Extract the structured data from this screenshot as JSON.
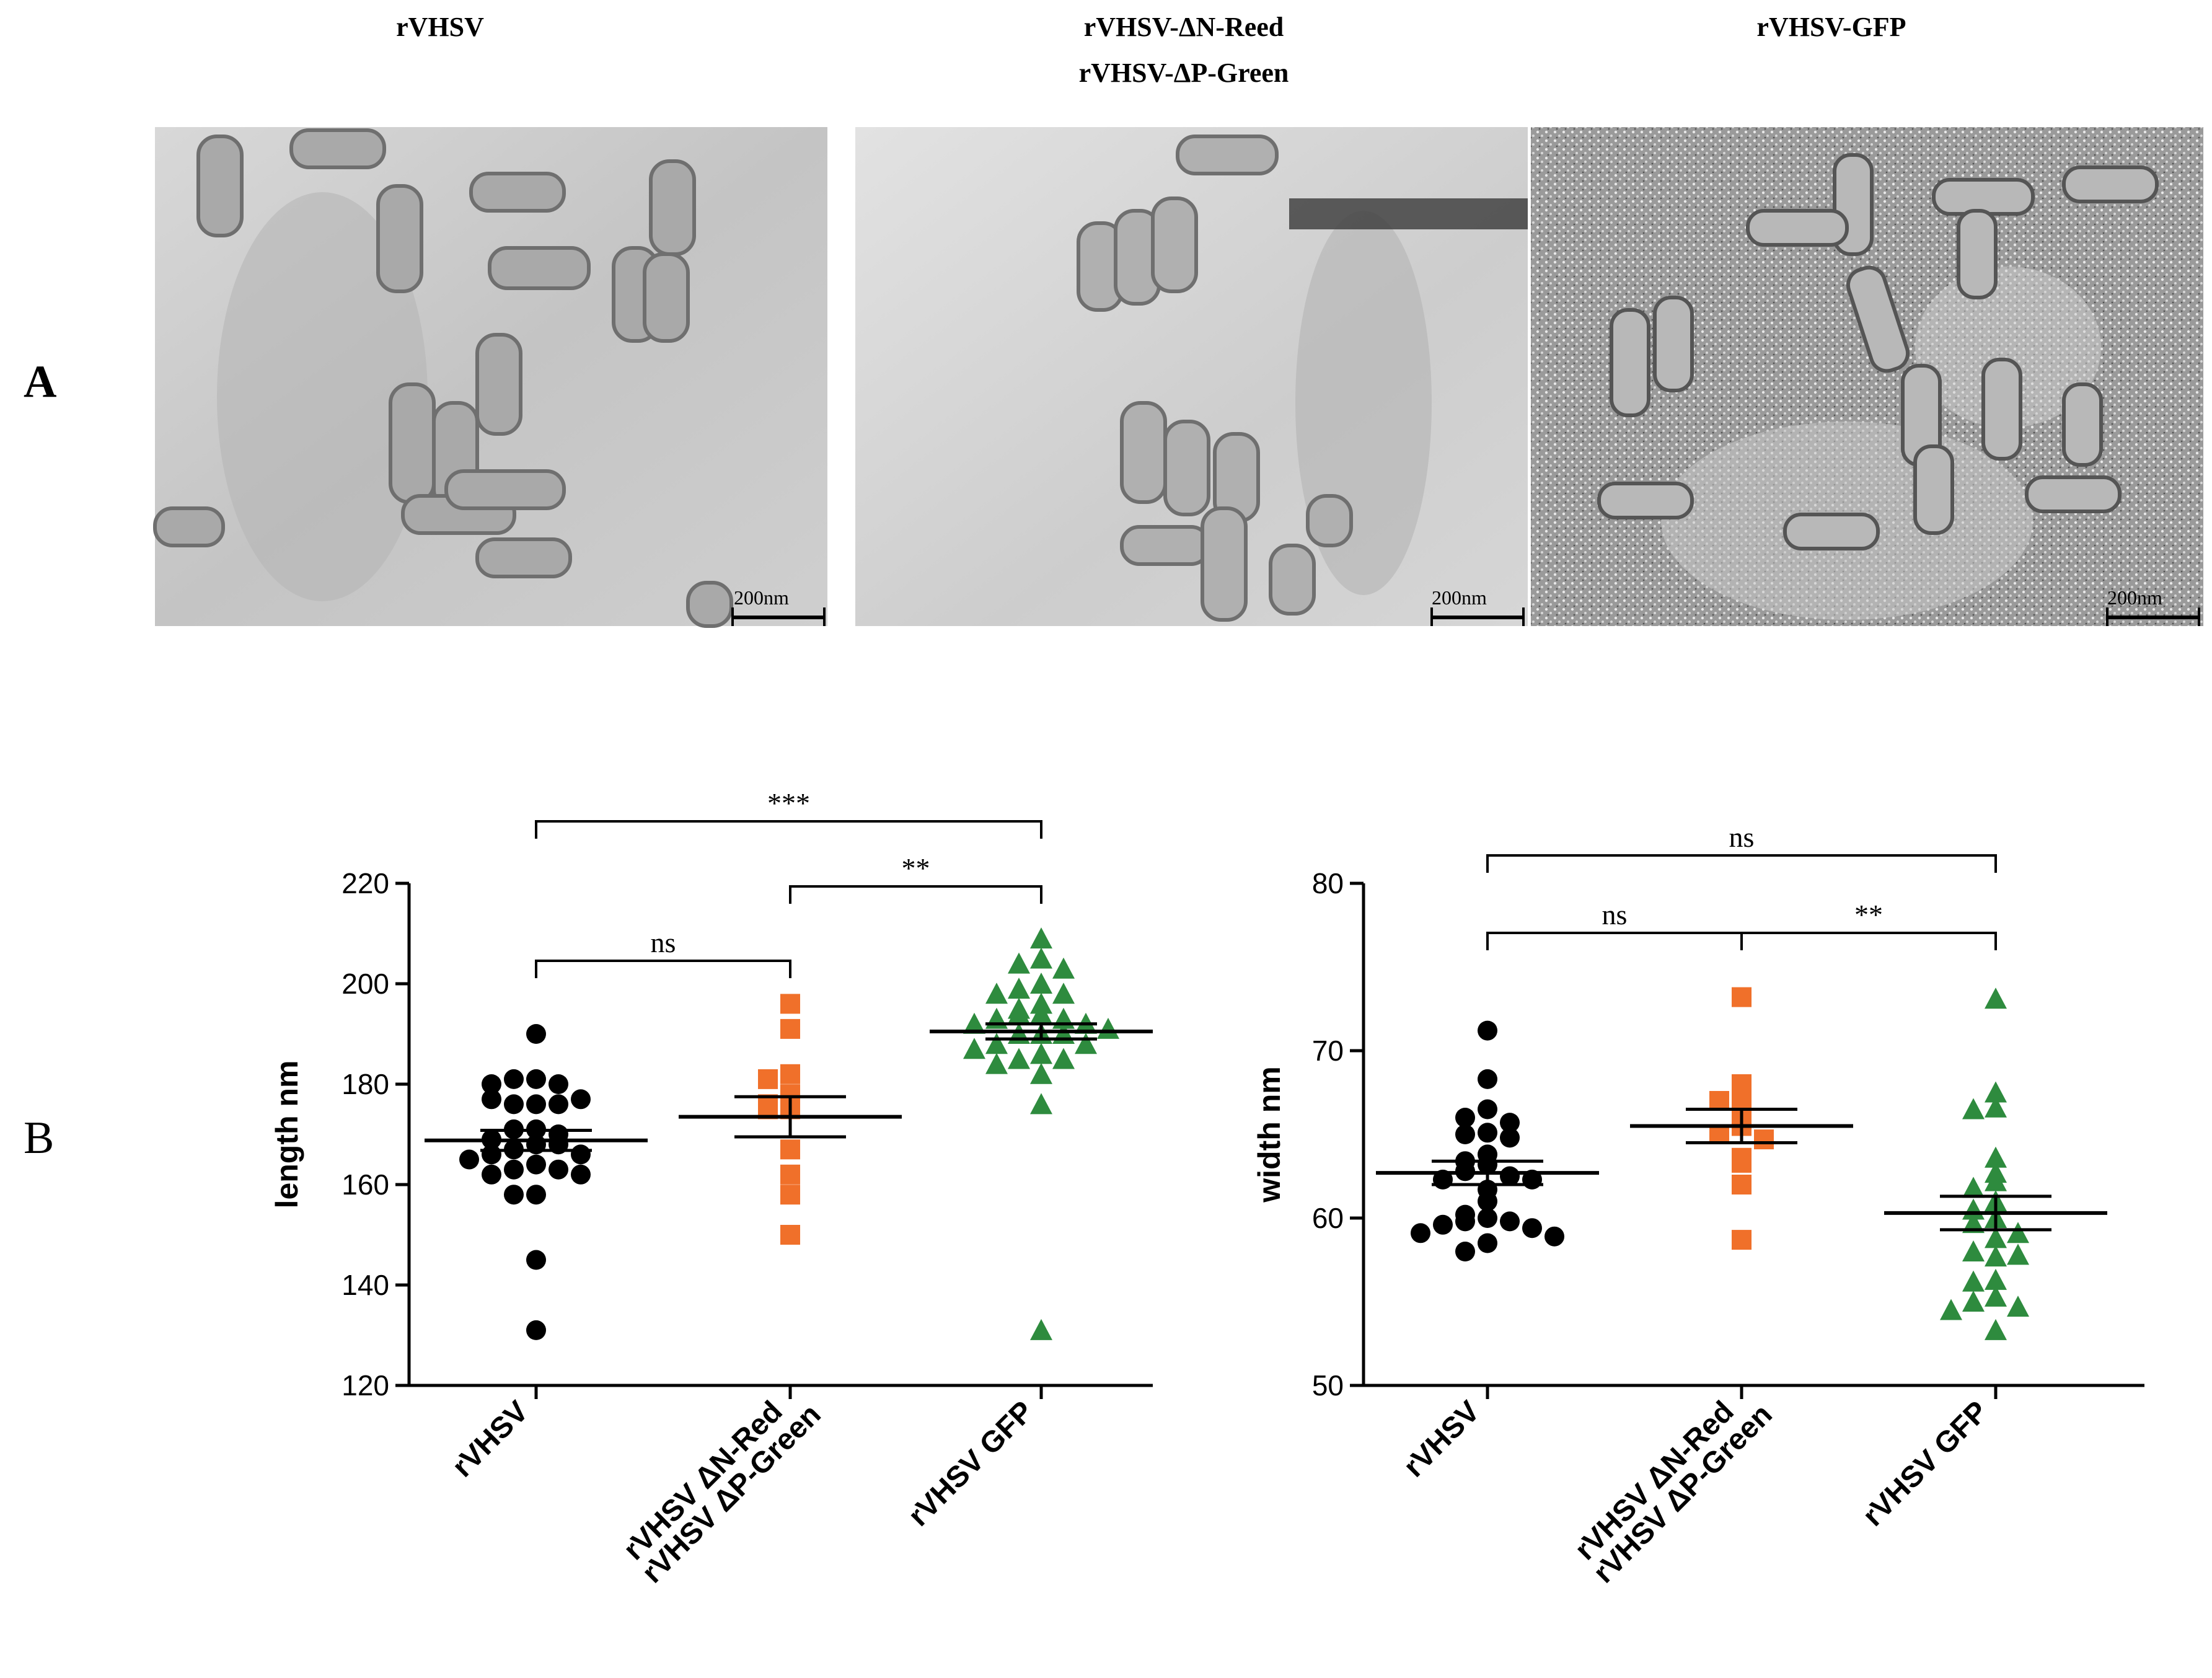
{
  "panel_a": {
    "letter": "A",
    "images": [
      {
        "title_lines": [
          "rVHSV"
        ],
        "scale_label": "200nm"
      },
      {
        "title_lines": [
          "rVHSV-ΔN-Reed",
          "rVHSV-ΔP-Green"
        ],
        "scale_label": "200nm"
      },
      {
        "title_lines": [
          "rVHSV-GFP"
        ],
        "scale_label": "200nm"
      }
    ]
  },
  "panel_b": {
    "letter": "B"
  },
  "colors": {
    "rVHSV": "#000000",
    "deltaNP": "#f0702a",
    "GFP": "#2e8b3e"
  },
  "chart_data": [
    {
      "type": "scatter",
      "ylabel": "length nm",
      "ylim": [
        120,
        220
      ],
      "yticks": [
        120,
        140,
        160,
        180,
        200,
        220
      ],
      "categories": [
        {
          "lines": [
            "rVHSV"
          ]
        },
        {
          "lines": [
            "rVHSV ΔN-Red",
            "rVHSV ΔP-Green"
          ]
        },
        {
          "lines": [
            "rVHSV GFP"
          ]
        }
      ],
      "series": [
        {
          "marker": "circle",
          "color": "#000000",
          "mean": 168.8,
          "sem": 2.0,
          "values": [
            190,
            181,
            181,
            180,
            180,
            176,
            176,
            176,
            177,
            177,
            171,
            171,
            170,
            169,
            168,
            167,
            168,
            166,
            166,
            165,
            164,
            163,
            163,
            162,
            162,
            158,
            158,
            145,
            131
          ]
        },
        {
          "marker": "square",
          "color": "#f0702a",
          "mean": 173.5,
          "sem": 4.0,
          "values": [
            196,
            191,
            182,
            181,
            178,
            176,
            175,
            175,
            167,
            162,
            158,
            150
          ]
        },
        {
          "marker": "triangle",
          "color": "#2e8b3e",
          "mean": 190.5,
          "sem": 1.5,
          "values": [
            209,
            205,
            204,
            203,
            200,
            199,
            198,
            198,
            196,
            195,
            194,
            194,
            193,
            193,
            192,
            192,
            191,
            190,
            190,
            190,
            188,
            188,
            187,
            186,
            185,
            185,
            184,
            182,
            176,
            131
          ]
        }
      ],
      "brackets": [
        {
          "from": 0,
          "to": 2,
          "label": "***"
        },
        {
          "from": 1,
          "to": 2,
          "label": "**"
        },
        {
          "from": 0,
          "to": 1,
          "label": "ns"
        }
      ]
    },
    {
      "type": "scatter",
      "ylabel": "width nm",
      "ylim": [
        50,
        80
      ],
      "yticks": [
        50,
        60,
        70,
        80
      ],
      "categories": [
        {
          "lines": [
            "rVHSV"
          ]
        },
        {
          "lines": [
            "rVHSV ΔN-Red",
            "rVHSV ΔP-Green"
          ]
        },
        {
          "lines": [
            "rVHSV GFP"
          ]
        }
      ],
      "series": [
        {
          "marker": "circle",
          "color": "#000000",
          "mean": 62.7,
          "sem": 0.7,
          "values": [
            71.2,
            68.3,
            66.5,
            66.0,
            65.7,
            65.1,
            65.0,
            64.8,
            63.8,
            63.4,
            63.2,
            62.8,
            62.5,
            62.3,
            62.3,
            61.7,
            61.0,
            60.2,
            60.0,
            59.8,
            59.8,
            59.6,
            59.4,
            59.1,
            58.9,
            58.5,
            58.0
          ]
        },
        {
          "marker": "square",
          "color": "#f0702a",
          "mean": 65.5,
          "sem": 1.0,
          "values": [
            73.2,
            68.0,
            67.3,
            67.0,
            66.2,
            65.5,
            65.0,
            64.7,
            63.6,
            63.3,
            62.0,
            58.7
          ]
        },
        {
          "marker": "triangle",
          "color": "#2e8b3e",
          "mean": 60.3,
          "sem": 1.0,
          "values": [
            73.1,
            67.5,
            66.6,
            66.5,
            63.6,
            62.7,
            62.2,
            61.8,
            61.0,
            60.5,
            60.0,
            59.7,
            59.1,
            58.8,
            58.0,
            57.8,
            57.7,
            56.3,
            56.2,
            55.3,
            55.0,
            54.7,
            54.5,
            53.3
          ]
        }
      ],
      "brackets": [
        {
          "from": 0,
          "to": 2,
          "label": "ns"
        },
        {
          "from": 0,
          "to": 1,
          "label": "ns"
        },
        {
          "from": 1,
          "to": 2,
          "label": "**"
        }
      ]
    }
  ]
}
